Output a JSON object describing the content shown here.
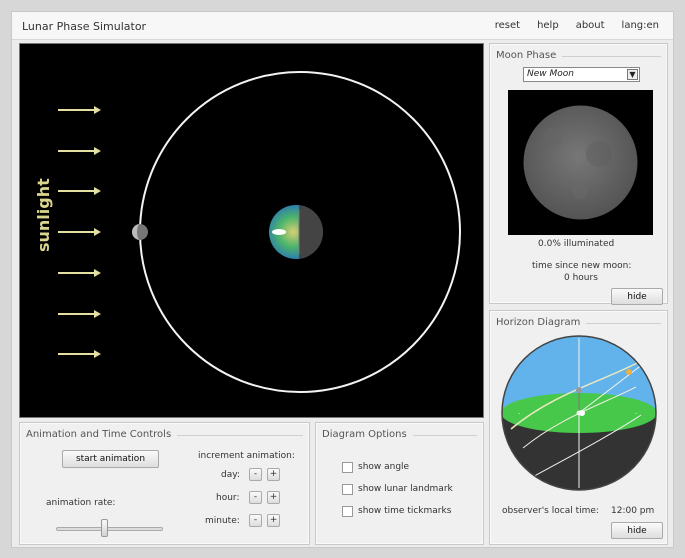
{
  "app": {
    "title": "Lunar Phase Simulator"
  },
  "menu": {
    "reset": "reset",
    "help": "help",
    "about": "about",
    "lang": "lang:en"
  },
  "diagram": {
    "sunlight_label": "sunlight"
  },
  "moon_phase": {
    "title": "Moon Phase",
    "selected_phase": "New Moon",
    "illumination": "0.0% illuminated",
    "time_label": "time since new moon:",
    "time_value": "0 hours",
    "hide_label": "hide"
  },
  "horizon": {
    "title": "Horizon Diagram",
    "local_time_label": "observer's local time:",
    "local_time_value": "12:00 pm",
    "hide_label": "hide"
  },
  "animation": {
    "title": "Animation and Time Controls",
    "start_label": "start animation",
    "increment_label": "increment animation:",
    "rate_label": "animation rate:",
    "rate_fraction": 0.42,
    "rows": [
      {
        "label": "day:",
        "minus": "-",
        "plus": "+"
      },
      {
        "label": "hour:",
        "minus": "-",
        "plus": "+"
      },
      {
        "label": "minute:",
        "minus": "-",
        "plus": "+"
      }
    ]
  },
  "options": {
    "title": "Diagram Options",
    "items": [
      {
        "label": "show angle",
        "checked": false
      },
      {
        "label": "show lunar landmark",
        "checked": false
      },
      {
        "label": "show time tickmarks",
        "checked": false
      }
    ]
  },
  "colors": {
    "sky": "#62b3eb",
    "ground": "#47c84a",
    "orbit": "#ffffff",
    "sunlight_text": "#d9d58c",
    "arrow": "#e4e0a2"
  }
}
